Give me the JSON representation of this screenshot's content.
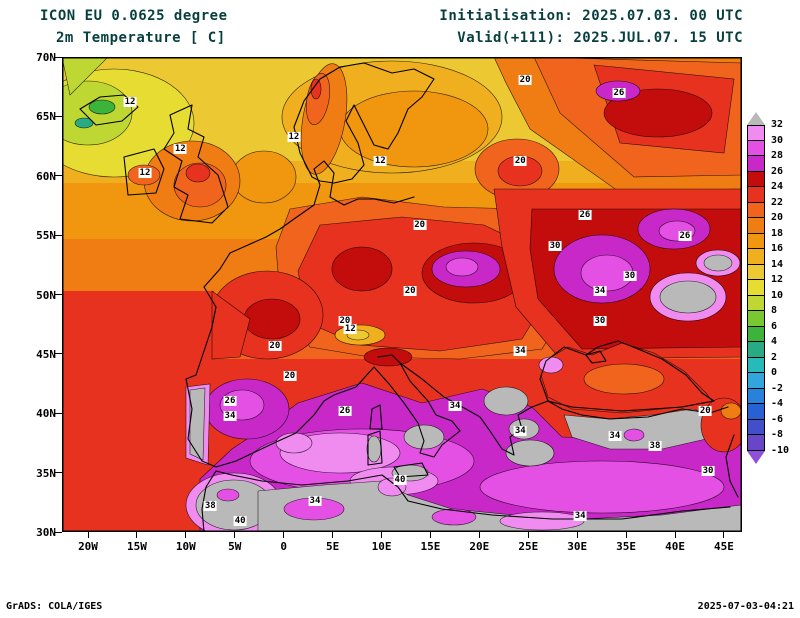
{
  "header": {
    "model_line": "ICON EU 0.0625 degree",
    "field_line": "2m Temperature [ C]",
    "init_line": "Initialisation: 2025.07.03. 00 UTC",
    "valid_line": "Valid(+111): 2025.JUL.07. 15 UTC"
  },
  "footer": {
    "left": "GrADS: COLA/IGES",
    "right": "2025-07-03-04:21"
  },
  "axes": {
    "lat_ticks": [
      "70N",
      "65N",
      "60N",
      "55N",
      "50N",
      "45N",
      "40N",
      "35N",
      "30N"
    ],
    "lon_ticks": [
      "20W",
      "15W",
      "10W",
      "5W",
      "0",
      "5E",
      "10E",
      "15E",
      "20E",
      "25E",
      "30E",
      "35E",
      "40E",
      "45E"
    ]
  },
  "chart_data": {
    "type": "heatmap",
    "title": "ICON EU 0.0625 degree  2m Temperature [ C]",
    "init_time": "2025.07.03. 00 UTC",
    "valid_time": "2025.JUL.07. 15 UTC (+111)",
    "units": "C",
    "lat_ticks": [
      "70N",
      "65N",
      "60N",
      "55N",
      "50N",
      "45N",
      "40N",
      "35N",
      "30N"
    ],
    "lon_ticks": [
      "20W",
      "15W",
      "10W",
      "5W",
      "0",
      "5E",
      "10E",
      "15E",
      "20E",
      "25E",
      "30E",
      "35E",
      "40E",
      "45E"
    ],
    "colorbar": {
      "tick_labels": [
        "32",
        "30",
        "28",
        "26",
        "24",
        "22",
        "20",
        "18",
        "16",
        "14",
        "12",
        "10",
        "8",
        "6",
        "4",
        "2",
        "0",
        "-2",
        "-4",
        "-6",
        "-8",
        "-10"
      ],
      "colors_top_to_bottom": [
        "#b9b9b9",
        "#f08cf0",
        "#e450e4",
        "#c828c8",
        "#c30c0c",
        "#e6321e",
        "#f0641e",
        "#f07d14",
        "#f0960f",
        "#f0af1e",
        "#ecc832",
        "#e6dc32",
        "#bed732",
        "#78c832",
        "#3cb43c",
        "#28aa82",
        "#28b9b9",
        "#32a5dc",
        "#2882dc",
        "#2861d2",
        "#4150c8",
        "#6946c8",
        "#9150dc"
      ]
    },
    "contour_labels_c": [
      {
        "v": "12",
        "x": 10.0,
        "y": 9.5
      },
      {
        "v": "12",
        "x": 17.4,
        "y": 19.4
      },
      {
        "v": "12",
        "x": 12.2,
        "y": 24.4
      },
      {
        "v": "12",
        "x": 34.1,
        "y": 16.8
      },
      {
        "v": "12",
        "x": 46.8,
        "y": 21.9
      },
      {
        "v": "20",
        "x": 68.1,
        "y": 4.8
      },
      {
        "v": "26",
        "x": 81.9,
        "y": 7.6
      },
      {
        "v": "20",
        "x": 67.4,
        "y": 21.9
      },
      {
        "v": "20",
        "x": 52.6,
        "y": 35.4
      },
      {
        "v": "26",
        "x": 76.9,
        "y": 33.3
      },
      {
        "v": "26",
        "x": 91.6,
        "y": 37.7
      },
      {
        "v": "30",
        "x": 72.5,
        "y": 39.8
      },
      {
        "v": "30",
        "x": 83.5,
        "y": 46.1
      },
      {
        "v": "20",
        "x": 51.2,
        "y": 49.3
      },
      {
        "v": "34",
        "x": 79.1,
        "y": 49.3
      },
      {
        "v": "30",
        "x": 79.1,
        "y": 55.6
      },
      {
        "v": "20",
        "x": 41.6,
        "y": 55.6
      },
      {
        "v": "12",
        "x": 42.4,
        "y": 57.3
      },
      {
        "v": "20",
        "x": 31.3,
        "y": 60.8
      },
      {
        "v": "34",
        "x": 67.4,
        "y": 61.9
      },
      {
        "v": "20",
        "x": 33.5,
        "y": 67.2
      },
      {
        "v": "26",
        "x": 24.7,
        "y": 72.4
      },
      {
        "v": "34",
        "x": 24.7,
        "y": 75.6
      },
      {
        "v": "26",
        "x": 41.6,
        "y": 74.5
      },
      {
        "v": "34",
        "x": 57.8,
        "y": 73.5
      },
      {
        "v": "34",
        "x": 67.4,
        "y": 78.7
      },
      {
        "v": "34",
        "x": 81.3,
        "y": 79.8
      },
      {
        "v": "20",
        "x": 94.6,
        "y": 74.5
      },
      {
        "v": "38",
        "x": 87.2,
        "y": 81.9
      },
      {
        "v": "40",
        "x": 49.7,
        "y": 89.1
      },
      {
        "v": "34",
        "x": 37.2,
        "y": 93.5
      },
      {
        "v": "38",
        "x": 21.8,
        "y": 94.5
      },
      {
        "v": "40",
        "x": 26.2,
        "y": 97.7
      },
      {
        "v": "34",
        "x": 76.2,
        "y": 96.6
      },
      {
        "v": "30",
        "x": 95.0,
        "y": 87.2
      }
    ]
  }
}
